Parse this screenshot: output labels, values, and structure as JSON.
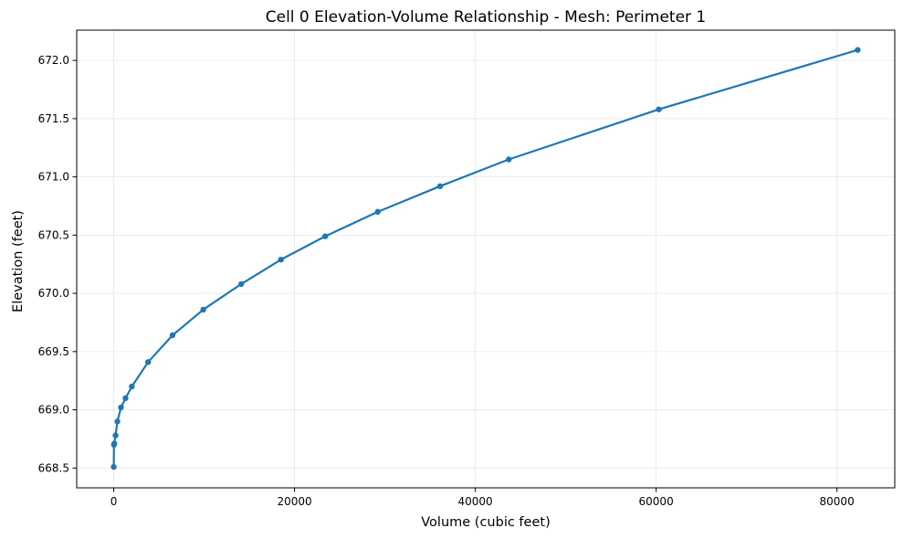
{
  "chart_data": {
    "type": "line",
    "title": "Cell 0 Elevation-Volume Relationship - Mesh: Perimeter 1",
    "xlabel": "Volume (cubic feet)",
    "ylabel": "Elevation (feet)",
    "xlim": [
      -4100,
      86400
    ],
    "ylim": [
      668.33,
      672.26
    ],
    "xticks": [
      0,
      20000,
      40000,
      60000,
      80000
    ],
    "xtick_labels": [
      "0",
      "20000",
      "40000",
      "60000",
      "80000"
    ],
    "yticks": [
      668.5,
      669.0,
      669.5,
      670.0,
      670.5,
      671.0,
      671.5,
      672.0
    ],
    "ytick_labels": [
      "668.5",
      "669.0",
      "669.5",
      "670.0",
      "670.5",
      "671.0",
      "671.5",
      "672.0"
    ],
    "grid": true,
    "series": [
      {
        "color": "#1f77b4",
        "marker": "circle",
        "x": [
          0,
          20,
          60,
          200,
          400,
          800,
          1300,
          2000,
          3800,
          6500,
          9900,
          14100,
          18500,
          23400,
          29200,
          36100,
          43700,
          60300,
          82300
        ],
        "y": [
          668.51,
          668.7,
          668.71,
          668.78,
          668.9,
          669.02,
          669.1,
          669.2,
          669.41,
          669.64,
          669.86,
          670.08,
          670.29,
          670.49,
          670.7,
          670.92,
          671.15,
          671.58,
          672.09
        ]
      }
    ]
  }
}
